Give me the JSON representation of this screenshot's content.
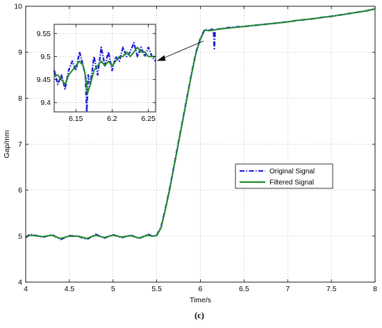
{
  "caption": "(c)",
  "colors": {
    "original": "#1f1fd6",
    "filtered": "#1e8a2a",
    "arrow": "#000000"
  },
  "chart_data": [
    {
      "type": "line",
      "title": "",
      "xlabel": "Time/s",
      "ylabel": "Gap/mm",
      "xlim": [
        4,
        8
      ],
      "ylim": [
        4,
        10
      ],
      "xticks": [
        "4",
        "4.5",
        "5",
        "5.5",
        "6",
        "6.5",
        "7",
        "7.5",
        "8"
      ],
      "yticks": [
        "4",
        "5",
        "6",
        "7",
        "8",
        "9",
        "10"
      ],
      "grid": true,
      "legend": {
        "position": "center-right",
        "entries": [
          "Original Signal",
          "Filtered Signal"
        ]
      },
      "series": [
        {
          "name": "Original Signal",
          "style": "dash-dot",
          "x": [
            4.0,
            4.05,
            4.1,
            4.2,
            4.3,
            4.4,
            4.5,
            4.6,
            4.7,
            4.8,
            4.9,
            5.0,
            5.1,
            5.2,
            5.3,
            5.4,
            5.45,
            5.5,
            5.55,
            5.6,
            5.65,
            5.7,
            5.75,
            5.8,
            5.85,
            5.9,
            5.95,
            6.0,
            6.05,
            6.1,
            6.15,
            6.16,
            6.17,
            6.2,
            6.3,
            6.4,
            6.5,
            6.6,
            6.7,
            6.8,
            6.9,
            7.0,
            7.1,
            7.2,
            7.3,
            7.4,
            7.5,
            7.6,
            7.7,
            7.8,
            7.9,
            8.0
          ],
          "values": [
            4.97,
            5.04,
            5.02,
            4.98,
            5.03,
            4.93,
            5.01,
            5.0,
            4.93,
            5.04,
            4.96,
            5.03,
            4.97,
            5.02,
            4.95,
            5.04,
            5.0,
            5.02,
            5.2,
            5.6,
            6.05,
            6.55,
            7.05,
            7.55,
            8.05,
            8.55,
            9.0,
            9.3,
            9.5,
            9.47,
            9.52,
            9.08,
            9.5,
            9.5,
            9.53,
            9.55,
            9.56,
            9.58,
            9.6,
            9.62,
            9.64,
            9.66,
            9.69,
            9.71,
            9.73,
            9.76,
            9.78,
            9.81,
            9.84,
            9.87,
            9.9,
            9.95
          ]
        },
        {
          "name": "Filtered Signal",
          "style": "solid",
          "x": [
            4.0,
            4.05,
            4.1,
            4.2,
            4.3,
            4.4,
            4.5,
            4.6,
            4.7,
            4.8,
            4.9,
            5.0,
            5.1,
            5.2,
            5.3,
            5.4,
            5.45,
            5.5,
            5.55,
            5.6,
            5.65,
            5.7,
            5.75,
            5.8,
            5.85,
            5.9,
            5.95,
            6.0,
            6.05,
            6.1,
            6.15,
            6.2,
            6.3,
            6.4,
            6.5,
            6.6,
            6.7,
            6.8,
            6.9,
            7.0,
            7.1,
            7.2,
            7.3,
            7.4,
            7.5,
            7.6,
            7.7,
            7.8,
            7.9,
            8.0
          ],
          "values": [
            4.98,
            5.02,
            5.01,
            4.99,
            5.02,
            4.95,
            5.0,
            5.0,
            4.95,
            5.02,
            4.97,
            5.02,
            4.98,
            5.01,
            4.96,
            5.02,
            5.0,
            5.01,
            5.18,
            5.58,
            6.03,
            6.53,
            7.03,
            7.53,
            8.03,
            8.53,
            8.98,
            9.28,
            9.48,
            9.47,
            9.48,
            9.5,
            9.52,
            9.54,
            9.56,
            9.58,
            9.6,
            9.62,
            9.64,
            9.66,
            9.69,
            9.71,
            9.73,
            9.76,
            9.78,
            9.81,
            9.84,
            9.87,
            9.9,
            9.94
          ]
        }
      ]
    },
    {
      "type": "line",
      "title": "",
      "xlabel": "",
      "ylabel": "",
      "xlim": [
        6.12,
        6.26
      ],
      "ylim": [
        9.38,
        9.57
      ],
      "xticks": [
        "6.15",
        "6.2",
        "6.25"
      ],
      "yticks": [
        "9.4",
        "9.45",
        "9.5",
        "9.55"
      ],
      "grid": true,
      "series": [
        {
          "name": "Original Signal",
          "style": "dash-dot",
          "x": [
            6.12,
            6.125,
            6.13,
            6.135,
            6.14,
            6.145,
            6.15,
            6.155,
            6.16,
            6.163,
            6.165,
            6.167,
            6.17,
            6.175,
            6.18,
            6.185,
            6.19,
            6.195,
            6.2,
            6.205,
            6.21,
            6.215,
            6.22,
            6.225,
            6.23,
            6.235,
            6.24,
            6.245,
            6.25,
            6.255,
            6.26
          ],
          "values": [
            9.47,
            9.44,
            9.46,
            9.43,
            9.47,
            9.49,
            9.47,
            9.51,
            9.48,
            9.46,
            9.38,
            9.46,
            9.44,
            9.5,
            9.46,
            9.52,
            9.48,
            9.51,
            9.47,
            9.5,
            9.49,
            9.52,
            9.5,
            9.51,
            9.53,
            9.5,
            9.52,
            9.5,
            9.52,
            9.5,
            9.49
          ]
        },
        {
          "name": "Filtered Signal",
          "style": "solid",
          "x": [
            6.12,
            6.125,
            6.13,
            6.135,
            6.14,
            6.145,
            6.15,
            6.155,
            6.16,
            6.163,
            6.166,
            6.17,
            6.175,
            6.18,
            6.185,
            6.19,
            6.195,
            6.2,
            6.205,
            6.21,
            6.215,
            6.22,
            6.225,
            6.23,
            6.235,
            6.24,
            6.245,
            6.25,
            6.255,
            6.26
          ],
          "values": [
            9.46,
            9.46,
            9.45,
            9.44,
            9.46,
            9.47,
            9.48,
            9.49,
            9.48,
            9.46,
            9.42,
            9.44,
            9.47,
            9.48,
            9.49,
            9.48,
            9.49,
            9.48,
            9.49,
            9.5,
            9.5,
            9.51,
            9.5,
            9.51,
            9.52,
            9.51,
            9.51,
            9.5,
            9.5,
            9.5
          ]
        }
      ]
    }
  ]
}
